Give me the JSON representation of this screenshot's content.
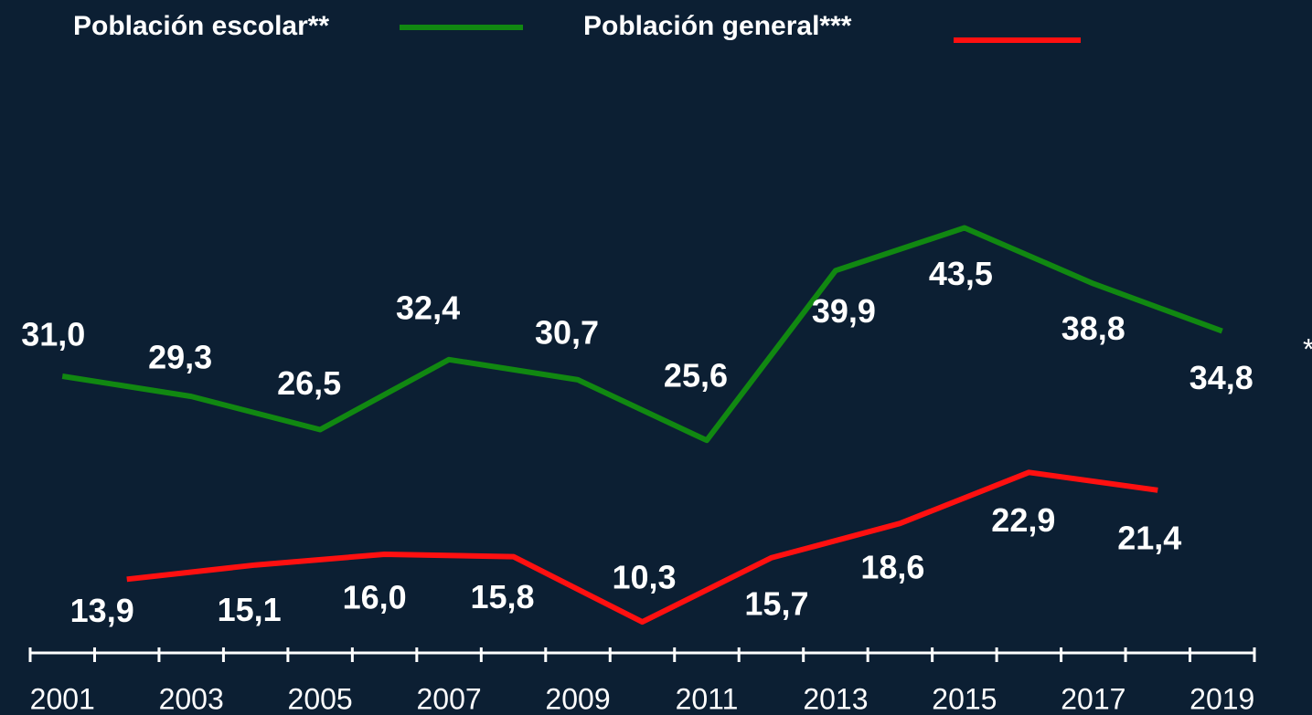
{
  "chart_data": {
    "type": "line",
    "series": [
      {
        "name": "Población escolar**",
        "color": "#118811",
        "x": [
          2001,
          2003,
          2005,
          2007,
          2009,
          2011,
          2013,
          2015,
          2017,
          2019
        ],
        "values": [
          31.0,
          29.3,
          26.5,
          32.4,
          30.7,
          25.6,
          39.9,
          43.5,
          38.8,
          34.8
        ],
        "value_labels": [
          "31,0",
          "29,3",
          "26,5",
          "32,4",
          "30,7",
          "25,6",
          "39,9",
          "43,5",
          "38,8",
          "34,8"
        ]
      },
      {
        "name": "Población general***",
        "color": "#ff1010",
        "x": [
          2002,
          2004,
          2006,
          2008,
          2010,
          2012,
          2014,
          2016,
          2018
        ],
        "values": [
          13.9,
          15.1,
          16.0,
          15.8,
          10.3,
          15.7,
          18.6,
          22.9,
          21.4
        ],
        "value_labels": [
          "13,9",
          "15,1",
          "16,0",
          "15,8",
          "10,3",
          "15,7",
          "18,6",
          "22,9",
          "21,4"
        ]
      }
    ],
    "xlim": [
      2000.5,
      2019.5
    ],
    "xticks": [
      2001,
      2003,
      2005,
      2007,
      2009,
      2011,
      2013,
      2015,
      2017,
      2019
    ],
    "ylim": [
      0,
      60
    ],
    "note": "*"
  }
}
